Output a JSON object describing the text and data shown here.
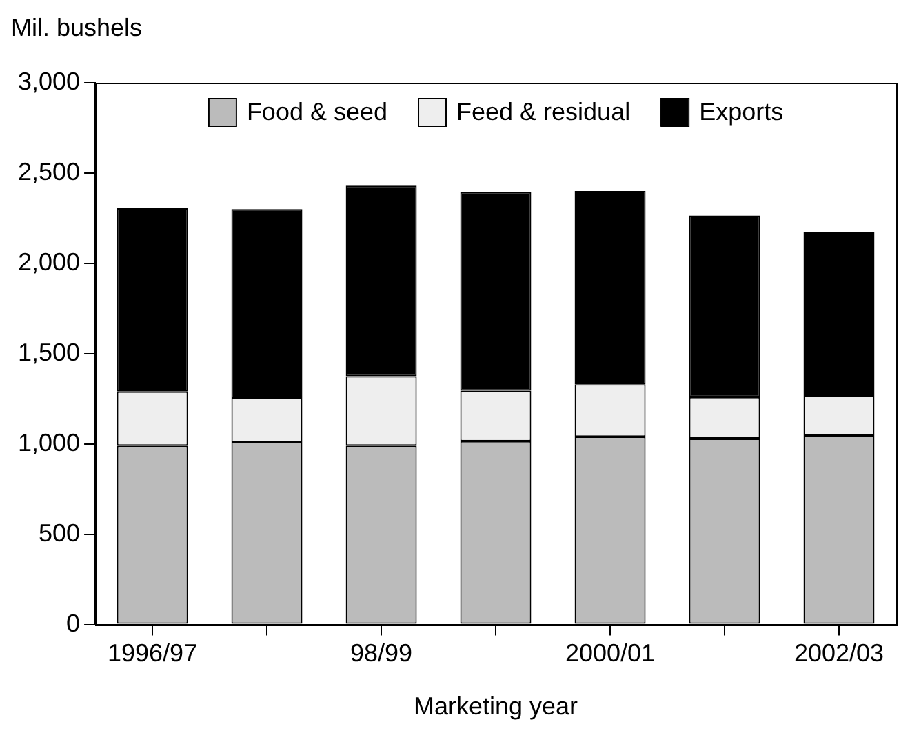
{
  "chart_data": {
    "type": "bar",
    "stacked": true,
    "ylabel": "Mil. bushels",
    "xlabel": "Marketing year",
    "categories": [
      "1996/97",
      null,
      "98/99",
      null,
      "2000/01",
      null,
      "2002/03"
    ],
    "series": [
      {
        "name": "Food & seed",
        "color": "#bbbbbb",
        "values": [
          990,
          1010,
          990,
          1015,
          1040,
          1030,
          1045
        ]
      },
      {
        "name": "Feed & residual",
        "color": "#eeeeee",
        "values": [
          300,
          245,
          385,
          280,
          290,
          230,
          225
        ]
      },
      {
        "name": "Exports",
        "color": "#000000",
        "values": [
          1015,
          1045,
          1055,
          1100,
          1070,
          1005,
          905
        ]
      }
    ],
    "ylim": [
      0,
      3000
    ],
    "yticks": [
      {
        "value": 0,
        "label": "0"
      },
      {
        "value": 500,
        "label": "500"
      },
      {
        "value": 1000,
        "label": "1,000"
      },
      {
        "value": 1500,
        "label": "1,500"
      },
      {
        "value": 2000,
        "label": "2,000"
      },
      {
        "value": 2500,
        "label": "2,500"
      },
      {
        "value": 3000,
        "label": "3,000"
      }
    ],
    "grid": false,
    "legend": "top"
  }
}
